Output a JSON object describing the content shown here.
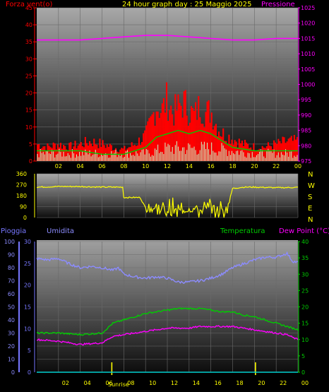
{
  "colors": {
    "wind_speed": "#ff0000",
    "wind_gust_bg": "#ff0000",
    "wind_avg": "#00cc00",
    "wind_low": "#ccffcc",
    "pressure": "#ff00ff",
    "direction": "#ffff00",
    "humidity": "#8c8cff",
    "temperature": "#00cc00",
    "dewpoint": "#ff00ff",
    "rain": "#00cccc",
    "axis_left_top": "#ff0000",
    "axis_right_top": "#ff00ff",
    "axis_rain": "#7777ff",
    "axis_temp": "#00cc00",
    "text": "#ffff00"
  },
  "header": {
    "title": "24 hour graph day : 25 Maggio 2025",
    "wind_label": "Forza vent(o)",
    "pressure_label": "Pressione"
  },
  "middle": {
    "compass": [
      "N",
      "W",
      "S",
      "E",
      "N"
    ]
  },
  "bottom": {
    "rain_label": "Pioggia",
    "humidity_label": "Umidita",
    "temperature_label": "Temperatura",
    "dewpoint_label": "Dew Point (°C)",
    "sunrise_label": "Sunrise",
    "sunset_label": ""
  },
  "chart_data": [
    {
      "type": "line",
      "name": "wind-pressure",
      "x_ticks": [
        "02",
        "04",
        "06",
        "08",
        "10",
        "12",
        "14",
        "16",
        "18",
        "20",
        "22",
        "00"
      ],
      "y_left_ticks": [
        "0",
        "5",
        "10",
        "15",
        "20",
        "25",
        "30",
        "35",
        "40",
        "45"
      ],
      "y_right_ticks": [
        "975",
        "980",
        "985",
        "990",
        "995",
        "1000",
        "1005",
        "1010",
        "1015",
        "1020",
        "1025"
      ],
      "ylim_left": [
        0,
        45
      ],
      "ylim_right": [
        975,
        1025
      ],
      "pressure": {
        "x": [
          0,
          2,
          4,
          6,
          8,
          10,
          12,
          14,
          16,
          18,
          20,
          22,
          24
        ],
        "values": [
          1014.5,
          1014.5,
          1014.5,
          1015,
          1015.5,
          1016,
          1016,
          1015.5,
          1015,
          1014.5,
          1014.5,
          1015,
          1015
        ]
      },
      "wind_max": {
        "x": [
          0,
          1,
          2,
          3,
          4,
          5,
          6,
          7,
          8,
          9,
          10,
          10.5,
          11,
          11.5,
          12,
          12.5,
          13,
          13.5,
          14,
          14.5,
          15,
          15.5,
          16,
          16.5,
          17,
          18,
          19,
          20,
          21,
          22,
          23,
          24
        ],
        "values": [
          6,
          5,
          6,
          5,
          6,
          7,
          6,
          5,
          4,
          6,
          9,
          14,
          20,
          18,
          22,
          17,
          19,
          21,
          18,
          16,
          20,
          17,
          18,
          13,
          10,
          8,
          6,
          5,
          5,
          6,
          7,
          7
        ]
      },
      "wind_avg": {
        "x": [
          0,
          2,
          4,
          6,
          8,
          10,
          11,
          12,
          13,
          14,
          15,
          16,
          17,
          18,
          20,
          22,
          24
        ],
        "values": [
          3,
          3,
          3,
          2,
          2,
          4,
          7,
          8,
          9,
          8,
          9,
          8,
          6,
          4,
          3,
          3,
          3
        ]
      },
      "wind_min": {
        "x": [
          0,
          2,
          4,
          6,
          8,
          10,
          12,
          14,
          16,
          18,
          20,
          22,
          24
        ],
        "values": [
          1,
          1,
          1,
          1,
          1,
          1,
          3,
          3,
          3,
          2,
          1,
          1,
          1
        ]
      }
    },
    {
      "type": "line",
      "name": "wind-direction",
      "y_ticks": [
        "0",
        "90",
        "180",
        "270",
        "360"
      ],
      "ylim": [
        0,
        360
      ],
      "x": [
        0,
        2,
        4,
        6,
        7,
        7.9,
        8,
        9,
        9.5,
        10,
        11,
        12,
        13,
        14,
        15,
        16,
        17,
        17.5,
        18,
        19,
        20,
        22,
        24
      ],
      "values": [
        250,
        255,
        255,
        250,
        250,
        250,
        165,
        165,
        165,
        80,
        70,
        60,
        50,
        75,
        60,
        70,
        55,
        70,
        240,
        250,
        250,
        245,
        248
      ]
    },
    {
      "type": "line",
      "name": "humidity-temperature",
      "y_left_outer_ticks": [
        "0",
        "10",
        "20",
        "30",
        "40",
        "50",
        "60",
        "70",
        "80",
        "90",
        "100"
      ],
      "y_left_inner_ticks": [
        "0",
        "5",
        "10",
        "15",
        "20",
        "25",
        "30"
      ],
      "y_right_ticks": [
        "0",
        "5",
        "10",
        "15",
        "20",
        "25",
        "30",
        "35",
        "40"
      ],
      "rain_lim": [
        0,
        30
      ],
      "humidity_lim": [
        0,
        100
      ],
      "temp_lim": [
        0,
        40
      ],
      "sunrise_hour": 6.9,
      "sunset_hour": 20.1,
      "x_tick_hours": [
        2,
        4,
        6,
        8,
        10,
        12,
        14,
        16,
        18,
        20,
        22,
        24
      ],
      "x_ticks": [
        "02",
        "04",
        "06",
        "08",
        "10",
        "12",
        "14",
        "16",
        "18",
        "20",
        "22",
        "00"
      ],
      "humidity": {
        "x": [
          0,
          1,
          2,
          3,
          4,
          5,
          6,
          7,
          7.5,
          8,
          9,
          10,
          11,
          12,
          13,
          14,
          15,
          16,
          17,
          18,
          19,
          20,
          21,
          22,
          23,
          23.5,
          24
        ],
        "values": [
          87,
          86,
          87,
          83,
          80,
          81,
          80,
          78,
          80,
          75,
          73,
          72,
          73,
          72,
          69,
          69,
          70,
          72,
          75,
          80,
          83,
          86,
          88,
          88,
          91,
          85,
          84
        ]
      },
      "temperature": {
        "x": [
          0,
          2,
          4,
          6,
          7,
          8,
          9,
          10,
          11,
          12,
          13,
          14,
          15,
          16,
          17,
          18,
          19,
          20,
          21,
          22,
          23,
          24
        ],
        "values": [
          12,
          12,
          11.5,
          12,
          15,
          16,
          17,
          18,
          18.5,
          19,
          19.5,
          19.5,
          19.5,
          19,
          18.5,
          18.5,
          17.5,
          17,
          16,
          15,
          14,
          13
        ]
      },
      "dewpoint": {
        "x": [
          0,
          2,
          4,
          6,
          7,
          8,
          9,
          10,
          11,
          12,
          13,
          14,
          15,
          16,
          17,
          18,
          19,
          20,
          21,
          22,
          23,
          23.6,
          24
        ],
        "values": [
          10,
          9.5,
          8.5,
          9,
          11,
          11.5,
          12,
          12.5,
          13,
          13.5,
          13.5,
          13.5,
          14,
          14,
          14,
          14,
          13.5,
          13,
          12.5,
          12,
          11.5,
          10.5,
          10
        ]
      },
      "rain": {
        "x": [
          0,
          24
        ],
        "values": [
          0,
          0
        ]
      }
    }
  ]
}
